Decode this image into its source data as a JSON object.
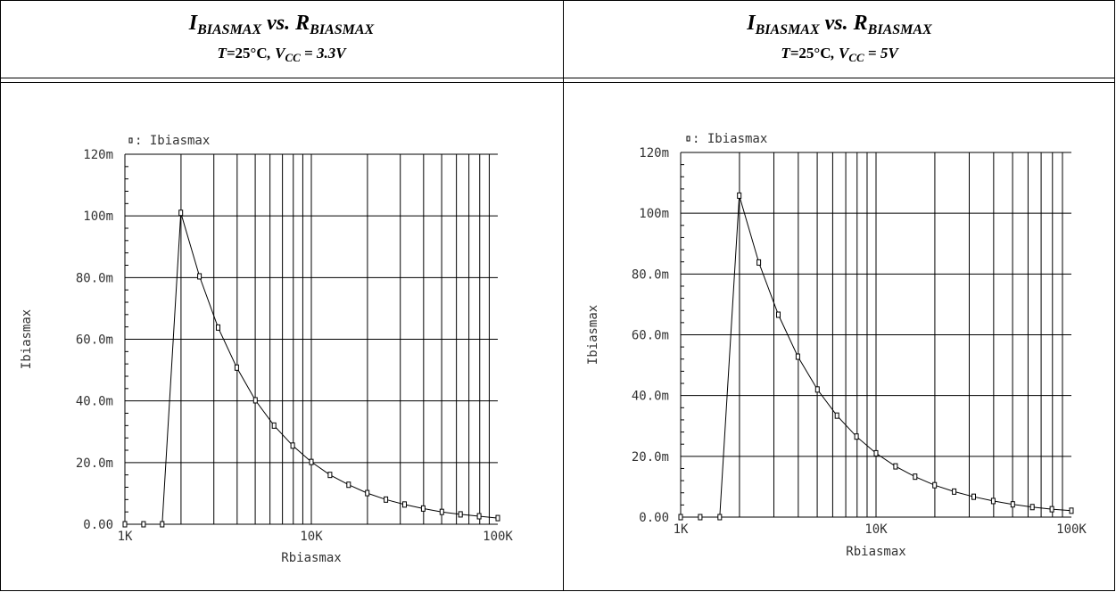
{
  "headers": [
    {
      "i_main": "I",
      "i_sub": "BIASMAX",
      "vs": " vs. ",
      "r_main": "R",
      "r_sub": "BIASMAX",
      "cond_t": "T=",
      "cond_temp": "25°C",
      "cond_v": ", V",
      "cond_vsub": "CC",
      "cond_val": " = 3.3V"
    },
    {
      "i_main": "I",
      "i_sub": "BIASMAX",
      "vs": " vs. ",
      "r_main": "R",
      "r_sub": "BIASMAX",
      "cond_t": "T=",
      "cond_temp": "25°C",
      "cond_v": ", V",
      "cond_vsub": "CC",
      "cond_val": " = 5V"
    }
  ],
  "chart_data": [
    {
      "type": "line",
      "marker": "square",
      "xscale": "log",
      "xlim": [
        1000,
        100000
      ],
      "ylim": [
        0,
        0.12
      ],
      "xticks": [
        1000,
        10000,
        100000
      ],
      "xtick_labels": [
        "1K",
        "10K",
        "100K"
      ],
      "yticks": [
        0,
        0.02,
        0.04,
        0.06,
        0.08,
        0.1,
        0.12
      ],
      "ytick_labels": [
        "0.00",
        "20.0m",
        "40.0m",
        "60.0m",
        "80.0m",
        "100m",
        "120m"
      ],
      "xlabel": "Rbiasmax",
      "ylabel": "Ibiasmax",
      "legend_position": "top-left",
      "grid": true,
      "series": [
        {
          "name": "Ibiasmax",
          "legend_text": ": Ibiasmax",
          "x": [
            1000,
            1259,
            1585,
            1995,
            2512,
            3162,
            3981,
            5012,
            6310,
            7943,
            10000,
            12589,
            15849,
            19953,
            25119,
            31623,
            39811,
            50119,
            63096,
            79433,
            100000
          ],
          "y": [
            0,
            0,
            0,
            0.101,
            0.0804,
            0.0638,
            0.0508,
            0.0402,
            0.032,
            0.0255,
            0.0202,
            0.016,
            0.0128,
            0.0101,
            0.008,
            0.0064,
            0.0051,
            0.004,
            0.0032,
            0.0026,
            0.002
          ]
        }
      ]
    },
    {
      "type": "line",
      "marker": "square",
      "xscale": "log",
      "xlim": [
        1000,
        100000
      ],
      "ylim": [
        0,
        0.12
      ],
      "xticks": [
        1000,
        10000,
        100000
      ],
      "xtick_labels": [
        "1K",
        "10K",
        "100K"
      ],
      "yticks": [
        0,
        0.02,
        0.04,
        0.06,
        0.08,
        0.1,
        0.12
      ],
      "ytick_labels": [
        "0.00",
        "20.0m",
        "40.0m",
        "60.0m",
        "80.0m",
        "100m",
        "120m"
      ],
      "xlabel": "Rbiasmax",
      "ylabel": "Ibiasmax",
      "legend_position": "top-left",
      "grid": true,
      "series": [
        {
          "name": "Ibiasmax",
          "legend_text": ": Ibiasmax",
          "x": [
            1000,
            1259,
            1585,
            1995,
            2512,
            3162,
            3981,
            5012,
            6310,
            7943,
            10000,
            12589,
            15849,
            19953,
            25119,
            31623,
            39811,
            50119,
            63096,
            79433,
            100000
          ],
          "y": [
            0,
            0,
            0,
            0.1058,
            0.0838,
            0.0666,
            0.0528,
            0.042,
            0.0334,
            0.0265,
            0.021,
            0.0167,
            0.0133,
            0.0105,
            0.0084,
            0.0067,
            0.0053,
            0.0042,
            0.0033,
            0.0026,
            0.0021
          ]
        }
      ]
    }
  ]
}
